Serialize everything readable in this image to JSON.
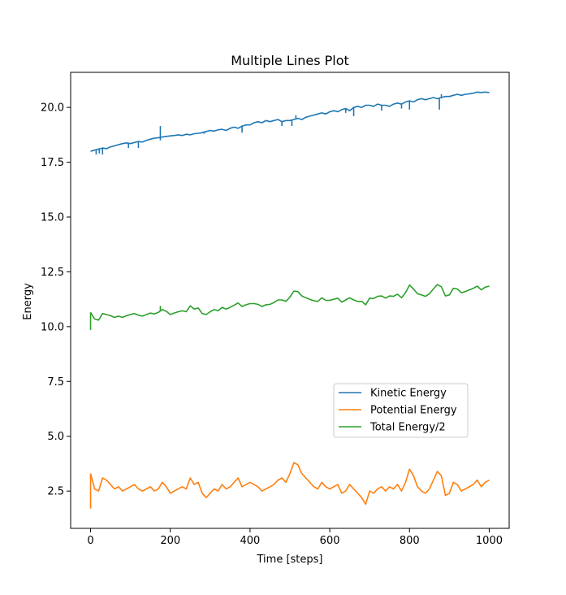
{
  "chart_data": {
    "type": "line",
    "title": "Multiple Lines Plot",
    "xlabel": "Time [steps]",
    "ylabel": "Energy",
    "xlim": [
      -50,
      1050
    ],
    "ylim": [
      0.8,
      21.6
    ],
    "xticks": [
      0,
      200,
      400,
      600,
      800,
      1000
    ],
    "yticks": [
      2.5,
      5.0,
      7.5,
      10.0,
      12.5,
      15.0,
      17.5,
      20.0
    ],
    "ytick_labels": [
      "2.5",
      "5.0",
      "7.5",
      "10.0",
      "12.5",
      "15.0",
      "17.5",
      "20.0"
    ],
    "grid": false,
    "legend_position": "lower-right",
    "series": [
      {
        "name": "Kinetic Energy",
        "color": "#1f77b4",
        "x": [
          0,
          10,
          20,
          30,
          40,
          50,
          60,
          70,
          80,
          90,
          100,
          110,
          120,
          130,
          140,
          150,
          160,
          170,
          180,
          190,
          200,
          210,
          220,
          230,
          240,
          250,
          260,
          270,
          280,
          290,
          300,
          310,
          320,
          330,
          340,
          350,
          360,
          370,
          380,
          390,
          400,
          410,
          420,
          430,
          440,
          450,
          460,
          470,
          480,
          490,
          500,
          510,
          520,
          530,
          540,
          550,
          560,
          570,
          580,
          590,
          600,
          610,
          620,
          630,
          640,
          650,
          660,
          670,
          680,
          690,
          700,
          710,
          720,
          730,
          740,
          750,
          760,
          770,
          780,
          790,
          800,
          810,
          820,
          830,
          840,
          850,
          860,
          870,
          880,
          890,
          900,
          910,
          920,
          930,
          940,
          950,
          960,
          970,
          980,
          990,
          1000
        ],
        "y": [
          18.0,
          18.05,
          18.1,
          18.15,
          18.12,
          18.2,
          18.25,
          18.3,
          18.35,
          18.38,
          18.35,
          18.4,
          18.45,
          18.42,
          18.5,
          18.55,
          18.6,
          18.62,
          18.65,
          18.68,
          18.7,
          18.72,
          18.75,
          18.72,
          18.78,
          18.75,
          18.8,
          18.82,
          18.85,
          18.9,
          18.95,
          18.92,
          18.98,
          19.0,
          18.95,
          19.05,
          19.1,
          19.05,
          19.15,
          19.2,
          19.2,
          19.3,
          19.35,
          19.3,
          19.4,
          19.35,
          19.4,
          19.45,
          19.35,
          19.4,
          19.4,
          19.45,
          19.5,
          19.45,
          19.55,
          19.6,
          19.65,
          19.7,
          19.75,
          19.7,
          19.8,
          19.85,
          19.8,
          19.9,
          19.95,
          19.85,
          20.0,
          20.05,
          20.0,
          20.1,
          20.1,
          20.05,
          20.15,
          20.1,
          20.1,
          20.05,
          20.15,
          20.2,
          20.15,
          20.25,
          20.3,
          20.25,
          20.35,
          20.4,
          20.35,
          20.4,
          20.45,
          20.4,
          20.45,
          20.5,
          20.5,
          20.55,
          20.6,
          20.55,
          20.6,
          20.62,
          20.65,
          20.7,
          20.68,
          20.7,
          20.68
        ],
        "spikes": [
          [
            14,
            17.85
          ],
          [
            22,
            17.9
          ],
          [
            30,
            17.85
          ],
          [
            95,
            18.15
          ],
          [
            120,
            18.15
          ],
          [
            175,
            19.15
          ],
          [
            175,
            18.5
          ],
          [
            285,
            18.8
          ],
          [
            380,
            18.85
          ],
          [
            480,
            19.15
          ],
          [
            505,
            19.15
          ],
          [
            515,
            19.65
          ],
          [
            640,
            19.75
          ],
          [
            660,
            19.6
          ],
          [
            730,
            19.85
          ],
          [
            780,
            19.95
          ],
          [
            800,
            19.9
          ],
          [
            875,
            19.9
          ],
          [
            880,
            20.6
          ]
        ]
      },
      {
        "name": "Potential Energy",
        "color": "#ff7f0e",
        "x": [
          0,
          10,
          20,
          30,
          40,
          50,
          60,
          70,
          80,
          90,
          100,
          110,
          120,
          130,
          140,
          150,
          160,
          170,
          180,
          190,
          200,
          210,
          220,
          230,
          240,
          250,
          260,
          270,
          280,
          290,
          300,
          310,
          320,
          330,
          340,
          350,
          360,
          370,
          380,
          390,
          400,
          410,
          420,
          430,
          440,
          450,
          460,
          470,
          480,
          490,
          500,
          510,
          520,
          530,
          540,
          550,
          560,
          570,
          580,
          590,
          600,
          610,
          620,
          630,
          640,
          650,
          660,
          670,
          680,
          690,
          700,
          710,
          720,
          730,
          740,
          750,
          760,
          770,
          780,
          790,
          800,
          810,
          820,
          830,
          840,
          850,
          860,
          870,
          880,
          890,
          900,
          910,
          920,
          930,
          940,
          950,
          960,
          970,
          980,
          990,
          1000
        ],
        "y": [
          3.3,
          2.6,
          2.5,
          3.1,
          3.0,
          2.8,
          2.6,
          2.7,
          2.5,
          2.6,
          2.7,
          2.8,
          2.6,
          2.5,
          2.6,
          2.7,
          2.5,
          2.6,
          2.9,
          2.7,
          2.4,
          2.5,
          2.6,
          2.7,
          2.6,
          3.1,
          2.8,
          2.9,
          2.4,
          2.2,
          2.4,
          2.6,
          2.5,
          2.8,
          2.6,
          2.7,
          2.9,
          3.1,
          2.7,
          2.8,
          2.9,
          2.8,
          2.7,
          2.5,
          2.6,
          2.7,
          2.8,
          3.0,
          3.1,
          2.9,
          3.3,
          3.8,
          3.7,
          3.3,
          3.1,
          2.9,
          2.7,
          2.6,
          2.9,
          2.7,
          2.6,
          2.7,
          2.8,
          2.4,
          2.5,
          2.8,
          2.6,
          2.4,
          2.2,
          1.9,
          2.5,
          2.4,
          2.6,
          2.7,
          2.5,
          2.7,
          2.6,
          2.8,
          2.5,
          2.9,
          3.5,
          3.2,
          2.7,
          2.5,
          2.4,
          2.6,
          3.0,
          3.4,
          3.2,
          2.3,
          2.4,
          2.9,
          2.8,
          2.5,
          2.6,
          2.7,
          2.8,
          3.0,
          2.7,
          2.9,
          3.0
        ],
        "spikes": [
          [
            0,
            1.7
          ]
        ]
      },
      {
        "name": "Total Energy/2",
        "color": "#2ca02c",
        "x": [
          0,
          10,
          20,
          30,
          40,
          50,
          60,
          70,
          80,
          90,
          100,
          110,
          120,
          130,
          140,
          150,
          160,
          170,
          180,
          190,
          200,
          210,
          220,
          230,
          240,
          250,
          260,
          270,
          280,
          290,
          300,
          310,
          320,
          330,
          340,
          350,
          360,
          370,
          380,
          390,
          400,
          410,
          420,
          430,
          440,
          450,
          460,
          470,
          480,
          490,
          500,
          510,
          520,
          530,
          540,
          550,
          560,
          570,
          580,
          590,
          600,
          610,
          620,
          630,
          640,
          650,
          660,
          670,
          680,
          690,
          700,
          710,
          720,
          730,
          740,
          750,
          760,
          770,
          780,
          790,
          800,
          810,
          820,
          830,
          840,
          850,
          860,
          870,
          880,
          890,
          900,
          910,
          920,
          930,
          940,
          950,
          960,
          970,
          980,
          990,
          1000
        ],
        "y": [
          10.65,
          10.35,
          10.3,
          10.6,
          10.55,
          10.5,
          10.42,
          10.48,
          10.42,
          10.5,
          10.55,
          10.6,
          10.52,
          10.48,
          10.55,
          10.62,
          10.58,
          10.65,
          10.78,
          10.7,
          10.55,
          10.62,
          10.68,
          10.72,
          10.68,
          10.95,
          10.8,
          10.85,
          10.6,
          10.55,
          10.68,
          10.78,
          10.72,
          10.88,
          10.8,
          10.88,
          10.98,
          11.08,
          10.92,
          11.0,
          11.05,
          11.05,
          11.02,
          10.92,
          11.0,
          11.02,
          11.1,
          11.22,
          11.22,
          11.15,
          11.35,
          11.62,
          11.6,
          11.4,
          11.32,
          11.25,
          11.18,
          11.15,
          11.32,
          11.2,
          11.2,
          11.25,
          11.3,
          11.12,
          11.22,
          11.32,
          11.22,
          11.15,
          11.15,
          11.0,
          11.3,
          11.28,
          11.38,
          11.4,
          11.3,
          11.4,
          11.38,
          11.48,
          11.32,
          11.55,
          11.9,
          11.72,
          11.5,
          11.45,
          11.38,
          11.5,
          11.72,
          11.92,
          11.82,
          11.4,
          11.45,
          11.75,
          11.72,
          11.55,
          11.6,
          11.68,
          11.75,
          11.85,
          11.68,
          11.8,
          11.85
        ],
        "spikes": [
          [
            0,
            9.85
          ],
          [
            175,
            10.95
          ]
        ]
      }
    ]
  }
}
